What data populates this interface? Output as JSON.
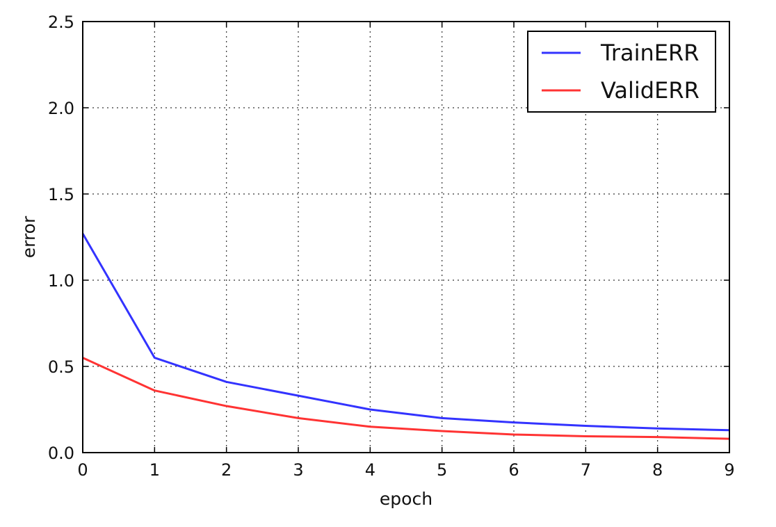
{
  "chart_data": {
    "type": "line",
    "title": "",
    "xlabel": "epoch",
    "ylabel": "error",
    "x": [
      0,
      1,
      2,
      3,
      4,
      5,
      6,
      7,
      8,
      9
    ],
    "xlim": [
      0,
      9
    ],
    "ylim": [
      0,
      2.5
    ],
    "xticks": [
      "0",
      "1",
      "2",
      "3",
      "4",
      "5",
      "6",
      "7",
      "8",
      "9"
    ],
    "yticks": [
      "0.0",
      "0.5",
      "1.0",
      "1.5",
      "2.0",
      "2.5"
    ],
    "grid": true,
    "legend_position": "top-right",
    "series": [
      {
        "name": "TrainERR",
        "color": "#3333ff",
        "values": [
          1.27,
          0.55,
          0.41,
          0.33,
          0.25,
          0.2,
          0.175,
          0.155,
          0.14,
          0.13
        ]
      },
      {
        "name": "ValidERR",
        "color": "#ff3333",
        "values": [
          0.55,
          0.36,
          0.27,
          0.2,
          0.15,
          0.125,
          0.105,
          0.095,
          0.09,
          0.08
        ]
      }
    ]
  }
}
